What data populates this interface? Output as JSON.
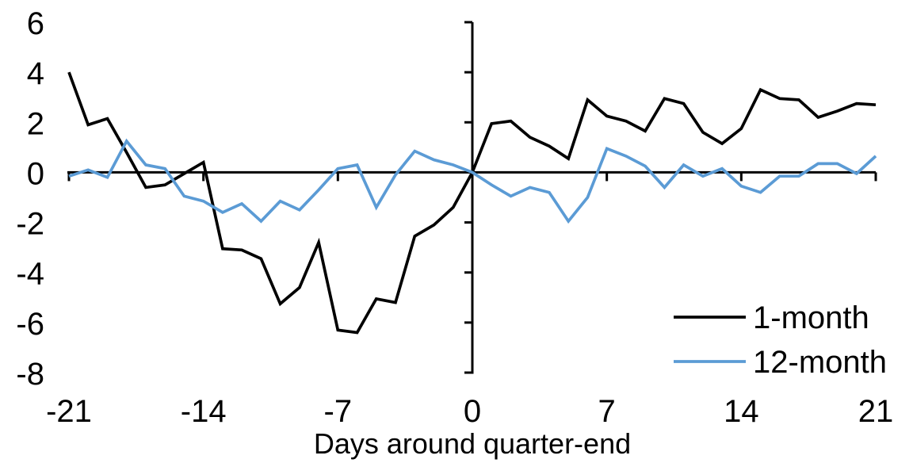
{
  "figure": {
    "background": "#ffffff",
    "axis_color": "#000000"
  },
  "chart_data": {
    "type": "line",
    "title": "",
    "xlabel": "Days around quarter-end",
    "ylabel": "",
    "xlim": [
      -21,
      21
    ],
    "ylim": [
      -8,
      6
    ],
    "xticks": [
      -21,
      -14,
      -7,
      0,
      7,
      14,
      21
    ],
    "yticks": [
      6,
      4,
      2,
      0,
      -2,
      -4,
      -6,
      -8
    ],
    "grid": false,
    "legend_position": "inside-lower-right",
    "x": [
      -21,
      -20,
      -19,
      -18,
      -17,
      -16,
      -15,
      -14,
      -13,
      -12,
      -11,
      -10,
      -9,
      -8,
      -7,
      -6,
      -5,
      -4,
      -3,
      -2,
      -1,
      0,
      1,
      2,
      3,
      4,
      5,
      6,
      7,
      8,
      9,
      10,
      11,
      12,
      13,
      14,
      15,
      16,
      17,
      18,
      19,
      20,
      21
    ],
    "series": [
      {
        "name": "1-month",
        "color": "#000000",
        "values": [
          4.0,
          1.9,
          2.15,
          0.8,
          -0.6,
          -0.5,
          -0.05,
          0.4,
          -3.05,
          -3.1,
          -3.45,
          -5.25,
          -4.6,
          -2.8,
          -6.3,
          -6.4,
          -5.05,
          -5.2,
          -2.55,
          -2.1,
          -1.4,
          0.0,
          1.95,
          2.05,
          1.4,
          1.05,
          0.55,
          2.9,
          2.25,
          2.05,
          1.65,
          2.95,
          2.75,
          1.6,
          1.15,
          1.75,
          3.3,
          2.95,
          2.9,
          2.2,
          2.45,
          2.75,
          2.7
        ]
      },
      {
        "name": "12-month",
        "color": "#5B9BD5",
        "values": [
          -0.15,
          0.1,
          -0.2,
          1.25,
          0.3,
          0.15,
          -0.95,
          -1.15,
          -1.6,
          -1.25,
          -1.95,
          -1.15,
          -1.5,
          -0.7,
          0.15,
          0.3,
          -1.4,
          -0.1,
          0.85,
          0.5,
          0.3,
          0.0,
          -0.5,
          -0.95,
          -0.6,
          -0.8,
          -1.95,
          -1.0,
          0.95,
          0.65,
          0.25,
          -0.6,
          0.3,
          -0.15,
          0.15,
          -0.55,
          -0.8,
          -0.15,
          -0.15,
          0.35,
          0.35,
          -0.05,
          0.65
        ]
      }
    ]
  }
}
